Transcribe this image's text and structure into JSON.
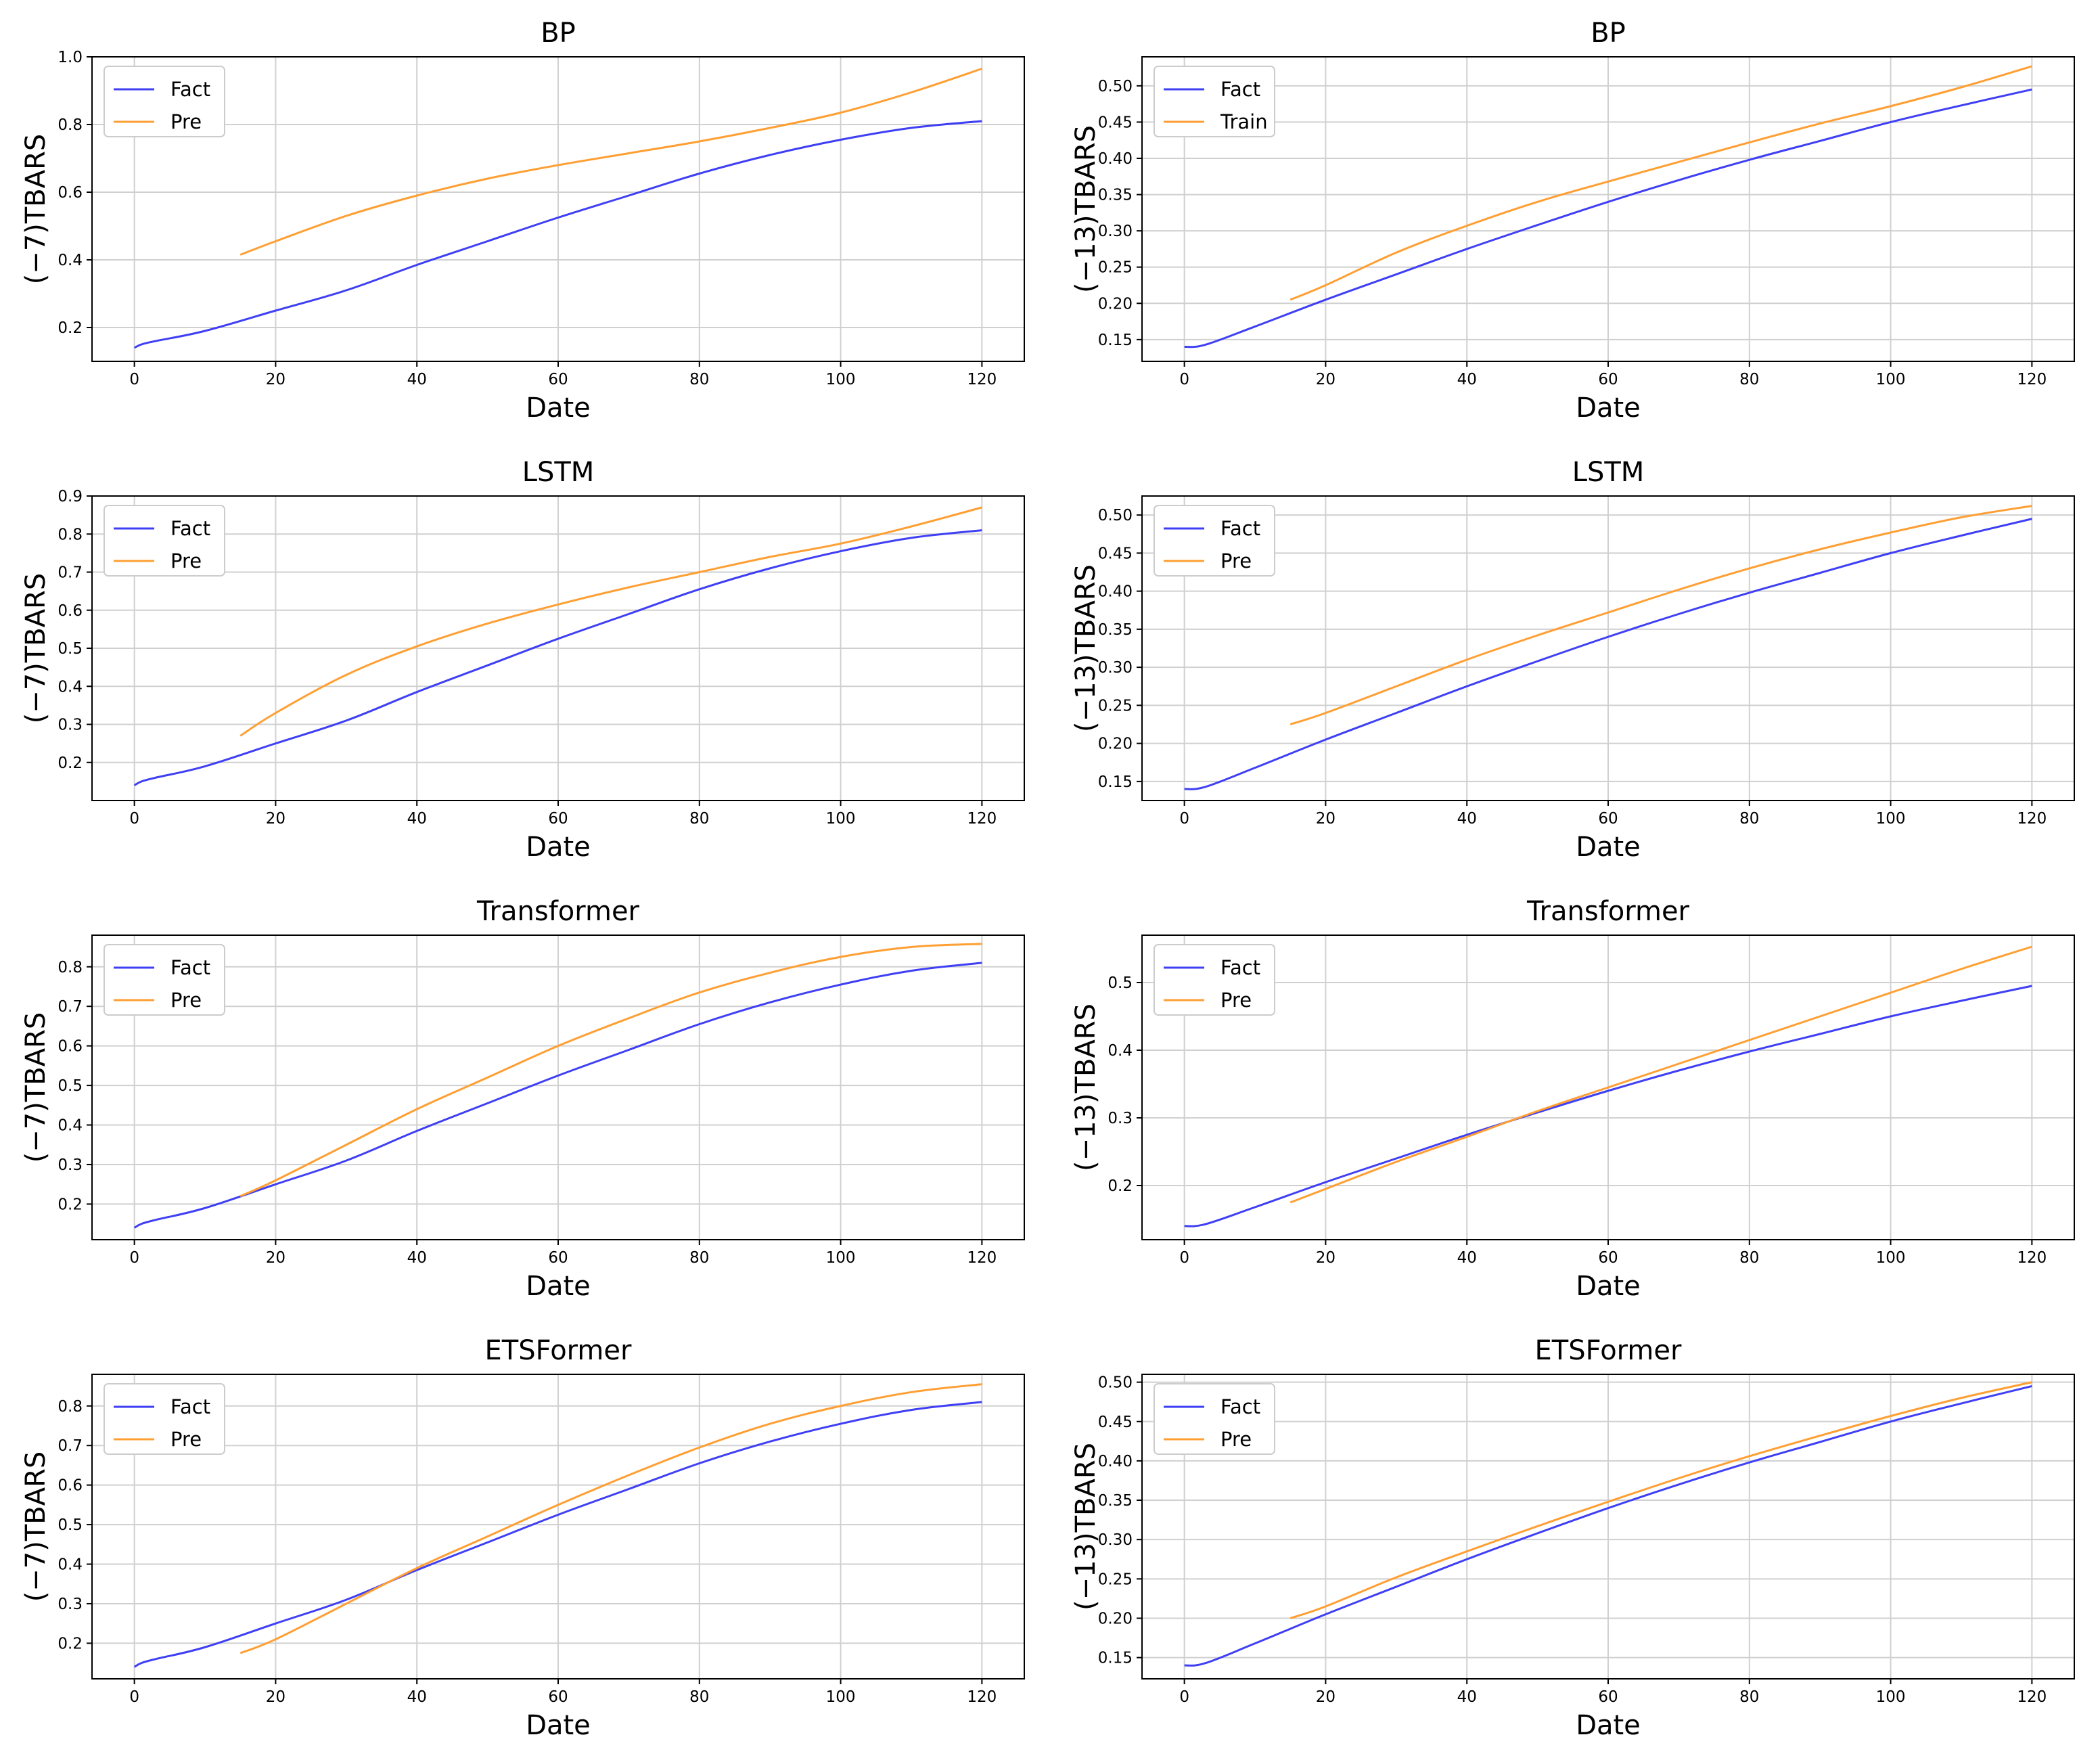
{
  "colors": {
    "fact": "#3f3ff5",
    "pre": "#ff9f33",
    "grid": "#d0d0d0"
  },
  "chart_data": [
    {
      "type": "line",
      "title": "BP",
      "xlabel": "Date",
      "ylabel": "(−7)TBARS",
      "xlim": [
        -6,
        126
      ],
      "ylim": [
        0.1,
        1.0
      ],
      "xticks": [
        0,
        20,
        40,
        60,
        80,
        100,
        120
      ],
      "yticks": [
        0.2,
        0.4,
        0.6,
        0.8,
        1.0
      ],
      "ytick_labels": [
        "0.2",
        "0.4",
        "0.6",
        "0.8",
        "1.0"
      ],
      "legend": "top-left",
      "series": [
        {
          "name": "Fact",
          "color_key": "fact",
          "x": [
            0,
            1,
            3,
            10,
            20,
            30,
            40,
            50,
            60,
            70,
            80,
            90,
            100,
            110,
            120
          ],
          "y": [
            0.14,
            0.15,
            0.16,
            0.19,
            0.25,
            0.31,
            0.385,
            0.455,
            0.525,
            0.59,
            0.655,
            0.71,
            0.755,
            0.79,
            0.81
          ]
        },
        {
          "name": "Pre",
          "color_key": "pre",
          "x": [
            15,
            20,
            30,
            40,
            50,
            60,
            70,
            80,
            90,
            100,
            110,
            120
          ],
          "y": [
            0.415,
            0.455,
            0.53,
            0.59,
            0.64,
            0.68,
            0.715,
            0.75,
            0.79,
            0.835,
            0.895,
            0.965
          ]
        }
      ]
    },
    {
      "type": "line",
      "title": "BP",
      "xlabel": "Date",
      "ylabel": "(−13)TBARS",
      "xlim": [
        -6,
        126
      ],
      "ylim": [
        0.12,
        0.54
      ],
      "xticks": [
        0,
        20,
        40,
        60,
        80,
        100,
        120
      ],
      "yticks": [
        0.15,
        0.2,
        0.25,
        0.3,
        0.35,
        0.4,
        0.45,
        0.5
      ],
      "ytick_labels": [
        "0.15",
        "0.20",
        "0.25",
        "0.30",
        "0.35",
        "0.40",
        "0.45",
        "0.50"
      ],
      "legend": "top-left",
      "series": [
        {
          "name": "Fact",
          "color_key": "fact",
          "x": [
            0,
            3,
            10,
            20,
            30,
            40,
            50,
            60,
            70,
            80,
            90,
            100,
            110,
            120
          ],
          "y": [
            0.14,
            0.143,
            0.168,
            0.205,
            0.24,
            0.275,
            0.308,
            0.34,
            0.37,
            0.398,
            0.424,
            0.45,
            0.473,
            0.495
          ]
        },
        {
          "name": "Train",
          "color_key": "pre",
          "x": [
            15,
            20,
            30,
            40,
            50,
            60,
            70,
            80,
            90,
            100,
            110,
            120
          ],
          "y": [
            0.205,
            0.225,
            0.27,
            0.307,
            0.34,
            0.368,
            0.395,
            0.422,
            0.448,
            0.472,
            0.498,
            0.527
          ]
        }
      ]
    },
    {
      "type": "line",
      "title": "LSTM",
      "xlabel": "Date",
      "ylabel": "(−7)TBARS",
      "xlim": [
        -6,
        126
      ],
      "ylim": [
        0.1,
        0.9
      ],
      "xticks": [
        0,
        20,
        40,
        60,
        80,
        100,
        120
      ],
      "yticks": [
        0.2,
        0.3,
        0.4,
        0.5,
        0.6,
        0.7,
        0.8,
        0.9
      ],
      "ytick_labels": [
        "0.2",
        "0.3",
        "0.4",
        "0.5",
        "0.6",
        "0.7",
        "0.8",
        "0.9"
      ],
      "legend": "top-left",
      "series": [
        {
          "name": "Fact",
          "color_key": "fact",
          "x": [
            0,
            1,
            3,
            10,
            20,
            30,
            40,
            50,
            60,
            70,
            80,
            90,
            100,
            110,
            120
          ],
          "y": [
            0.14,
            0.15,
            0.16,
            0.19,
            0.25,
            0.31,
            0.385,
            0.455,
            0.525,
            0.59,
            0.655,
            0.71,
            0.755,
            0.79,
            0.81
          ]
        },
        {
          "name": "Pre",
          "color_key": "pre",
          "x": [
            15,
            20,
            30,
            40,
            50,
            60,
            70,
            80,
            90,
            100,
            110,
            120
          ],
          "y": [
            0.27,
            0.33,
            0.43,
            0.505,
            0.565,
            0.615,
            0.66,
            0.7,
            0.74,
            0.775,
            0.82,
            0.87
          ]
        }
      ]
    },
    {
      "type": "line",
      "title": "LSTM",
      "xlabel": "Date",
      "ylabel": "(−13)TBARS",
      "xlim": [
        -6,
        126
      ],
      "ylim": [
        0.125,
        0.525
      ],
      "xticks": [
        0,
        20,
        40,
        60,
        80,
        100,
        120
      ],
      "yticks": [
        0.15,
        0.2,
        0.25,
        0.3,
        0.35,
        0.4,
        0.45,
        0.5
      ],
      "ytick_labels": [
        "0.15",
        "0.20",
        "0.25",
        "0.30",
        "0.35",
        "0.40",
        "0.45",
        "0.50"
      ],
      "legend": "top-left",
      "series": [
        {
          "name": "Fact",
          "color_key": "fact",
          "x": [
            0,
            3,
            10,
            20,
            30,
            40,
            50,
            60,
            70,
            80,
            90,
            100,
            110,
            120
          ],
          "y": [
            0.14,
            0.143,
            0.168,
            0.205,
            0.24,
            0.275,
            0.308,
            0.34,
            0.37,
            0.398,
            0.424,
            0.45,
            0.473,
            0.495
          ]
        },
        {
          "name": "Pre",
          "color_key": "pre",
          "x": [
            15,
            20,
            30,
            40,
            50,
            60,
            70,
            80,
            90,
            100,
            110,
            120
          ],
          "y": [
            0.225,
            0.24,
            0.275,
            0.31,
            0.342,
            0.372,
            0.402,
            0.43,
            0.455,
            0.477,
            0.497,
            0.512
          ]
        }
      ]
    },
    {
      "type": "line",
      "title": "Transformer",
      "xlabel": "Date",
      "ylabel": "(−7)TBARS",
      "xlim": [
        -6,
        126
      ],
      "ylim": [
        0.11,
        0.88
      ],
      "xticks": [
        0,
        20,
        40,
        60,
        80,
        100,
        120
      ],
      "yticks": [
        0.2,
        0.3,
        0.4,
        0.5,
        0.6,
        0.7,
        0.8
      ],
      "ytick_labels": [
        "0.2",
        "0.3",
        "0.4",
        "0.5",
        "0.6",
        "0.7",
        "0.8"
      ],
      "legend": "top-left",
      "series": [
        {
          "name": "Fact",
          "color_key": "fact",
          "x": [
            0,
            1,
            3,
            10,
            20,
            30,
            40,
            50,
            60,
            70,
            80,
            90,
            100,
            110,
            120
          ],
          "y": [
            0.14,
            0.15,
            0.16,
            0.19,
            0.25,
            0.31,
            0.385,
            0.455,
            0.525,
            0.59,
            0.655,
            0.71,
            0.755,
            0.79,
            0.81
          ]
        },
        {
          "name": "Pre",
          "color_key": "pre",
          "x": [
            15,
            20,
            30,
            40,
            50,
            60,
            70,
            80,
            90,
            100,
            110,
            120
          ],
          "y": [
            0.22,
            0.26,
            0.35,
            0.44,
            0.52,
            0.6,
            0.67,
            0.735,
            0.785,
            0.825,
            0.85,
            0.858
          ]
        }
      ]
    },
    {
      "type": "line",
      "title": "Transformer",
      "xlabel": "Date",
      "ylabel": "(−13)TBARS",
      "xlim": [
        -6,
        126
      ],
      "ylim": [
        0.12,
        0.57
      ],
      "xticks": [
        0,
        20,
        40,
        60,
        80,
        100,
        120
      ],
      "yticks": [
        0.2,
        0.3,
        0.4,
        0.5
      ],
      "ytick_labels": [
        "0.2",
        "0.3",
        "0.4",
        "0.5"
      ],
      "legend": "top-left",
      "series": [
        {
          "name": "Fact",
          "color_key": "fact",
          "x": [
            0,
            3,
            10,
            20,
            30,
            40,
            50,
            60,
            70,
            80,
            90,
            100,
            110,
            120
          ],
          "y": [
            0.14,
            0.143,
            0.168,
            0.205,
            0.24,
            0.275,
            0.308,
            0.34,
            0.37,
            0.398,
            0.424,
            0.45,
            0.473,
            0.495
          ]
        },
        {
          "name": "Pre",
          "color_key": "pre",
          "x": [
            15,
            20,
            30,
            40,
            50,
            60,
            70,
            80,
            90,
            100,
            110,
            120
          ],
          "y": [
            0.175,
            0.195,
            0.235,
            0.272,
            0.31,
            0.345,
            0.38,
            0.415,
            0.45,
            0.485,
            0.52,
            0.553
          ]
        }
      ]
    },
    {
      "type": "line",
      "title": "ETSFormer",
      "xlabel": "Date",
      "ylabel": "(−7)TBARS",
      "xlim": [
        -6,
        126
      ],
      "ylim": [
        0.11,
        0.88
      ],
      "xticks": [
        0,
        20,
        40,
        60,
        80,
        100,
        120
      ],
      "yticks": [
        0.2,
        0.3,
        0.4,
        0.5,
        0.6,
        0.7,
        0.8
      ],
      "ytick_labels": [
        "0.2",
        "0.3",
        "0.4",
        "0.5",
        "0.6",
        "0.7",
        "0.8"
      ],
      "legend": "top-left",
      "series": [
        {
          "name": "Fact",
          "color_key": "fact",
          "x": [
            0,
            1,
            3,
            10,
            20,
            30,
            40,
            50,
            60,
            70,
            80,
            90,
            100,
            110,
            120
          ],
          "y": [
            0.14,
            0.15,
            0.16,
            0.19,
            0.25,
            0.31,
            0.385,
            0.455,
            0.525,
            0.59,
            0.655,
            0.71,
            0.755,
            0.79,
            0.81
          ]
        },
        {
          "name": "Pre",
          "color_key": "pre",
          "x": [
            15,
            20,
            30,
            40,
            50,
            60,
            70,
            80,
            90,
            100,
            110,
            120
          ],
          "y": [
            0.175,
            0.21,
            0.3,
            0.39,
            0.47,
            0.55,
            0.625,
            0.695,
            0.755,
            0.8,
            0.835,
            0.855
          ]
        }
      ]
    },
    {
      "type": "line",
      "title": "ETSFormer",
      "xlabel": "Date",
      "ylabel": "(−13)TBARS",
      "xlim": [
        -6,
        126
      ],
      "ylim": [
        0.123,
        0.51
      ],
      "xticks": [
        0,
        20,
        40,
        60,
        80,
        100,
        120
      ],
      "yticks": [
        0.15,
        0.2,
        0.25,
        0.3,
        0.35,
        0.4,
        0.45,
        0.5
      ],
      "ytick_labels": [
        "0.15",
        "0.20",
        "0.25",
        "0.30",
        "0.35",
        "0.40",
        "0.45",
        "0.50"
      ],
      "legend": "top-left",
      "series": [
        {
          "name": "Fact",
          "color_key": "fact",
          "x": [
            0,
            3,
            10,
            20,
            30,
            40,
            50,
            60,
            70,
            80,
            90,
            100,
            110,
            120
          ],
          "y": [
            0.14,
            0.143,
            0.168,
            0.205,
            0.24,
            0.275,
            0.308,
            0.34,
            0.37,
            0.398,
            0.424,
            0.45,
            0.473,
            0.495
          ]
        },
        {
          "name": "Pre",
          "color_key": "pre",
          "x": [
            15,
            20,
            30,
            40,
            50,
            60,
            70,
            80,
            90,
            100,
            110,
            120
          ],
          "y": [
            0.2,
            0.215,
            0.252,
            0.285,
            0.317,
            0.348,
            0.378,
            0.406,
            0.432,
            0.457,
            0.48,
            0.5
          ]
        }
      ]
    }
  ]
}
